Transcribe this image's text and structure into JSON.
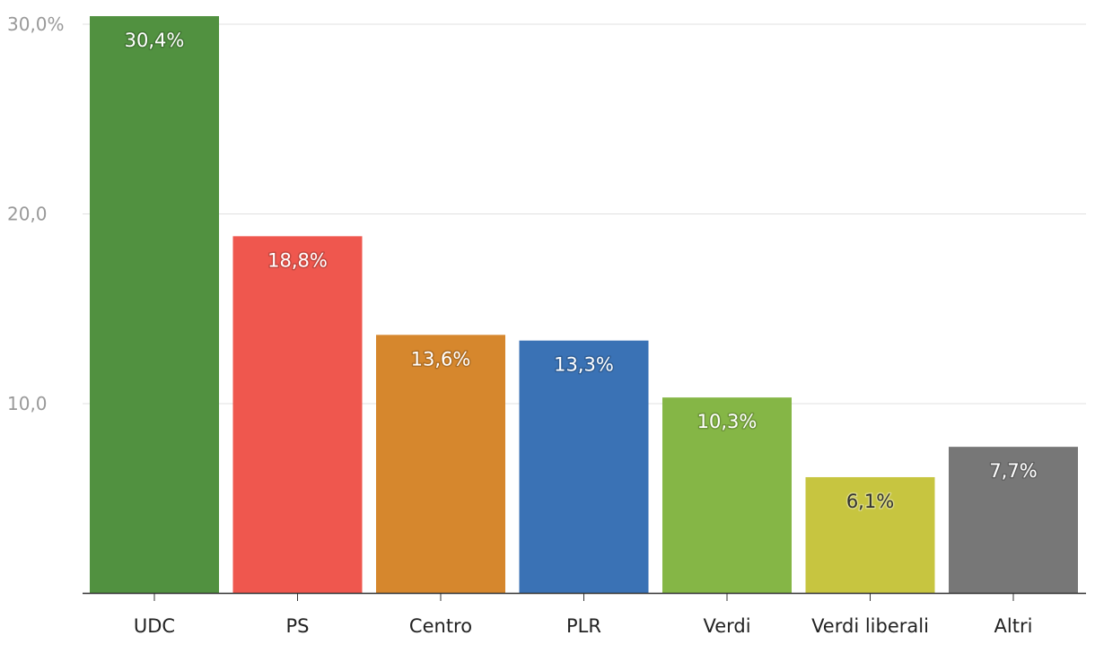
{
  "chart_data": {
    "type": "bar",
    "title": "",
    "xlabel": "",
    "ylabel": "",
    "ylim": [
      0,
      30.4
    ],
    "y_ticks": [
      {
        "value": 10,
        "label": "10,0"
      },
      {
        "value": 20,
        "label": "20,0"
      },
      {
        "value": 30,
        "label": "30,0%"
      }
    ],
    "grid": true,
    "legend": "none",
    "categories": [
      "UDC",
      "PS",
      "Centro",
      "PLR",
      "Verdi",
      "Verdi liberali",
      "Altri"
    ],
    "values": [
      30.4,
      18.8,
      13.6,
      13.3,
      10.3,
      6.1,
      7.7
    ],
    "data_labels": [
      "30,4%",
      "18,8%",
      "13,6%",
      "13,3%",
      "10,3%",
      "6,1%",
      "7,7%"
    ],
    "colors": [
      "#519140",
      "#ef574e",
      "#d6872d",
      "#3a72b5",
      "#85b646",
      "#c7c540",
      "#777777"
    ],
    "label_colors": [
      "#ffffff",
      "#ffffff",
      "#ffffff",
      "#ffffff",
      "#ffffff",
      "#333333",
      "#ffffff"
    ]
  }
}
